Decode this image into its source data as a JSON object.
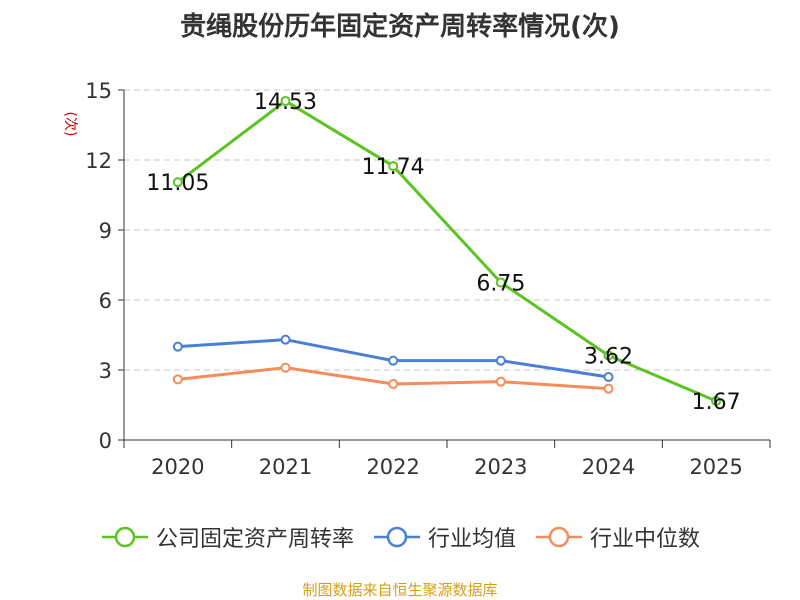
{
  "title": "贵绳股份历年固定资产周转率情况(次)",
  "source": "制图数据来自恒生聚源数据库",
  "chart_data": {
    "type": "line",
    "title": "贵绳股份历年固定资产周转率情况(次)",
    "ylabel": "(次)",
    "xlabel": "",
    "categories": [
      "2020",
      "2021",
      "2022",
      "2023",
      "2024",
      "2025"
    ],
    "ylim": [
      0,
      15
    ],
    "yticks": [
      "0",
      "3",
      "6",
      "9",
      "12",
      "15"
    ],
    "grid": true,
    "legend_position": "bottom",
    "series": [
      {
        "name": "公司固定资产周转率",
        "color": "#5cc323",
        "values": [
          11.05,
          14.53,
          11.74,
          6.75,
          3.62,
          1.67
        ],
        "labels": [
          "11.05",
          "14.53",
          "11.74",
          "6.75",
          "3.62",
          "1.67"
        ]
      },
      {
        "name": "行业均值",
        "color": "#4a7fd8",
        "values": [
          4.0,
          4.3,
          3.4,
          3.4,
          2.7,
          null
        ]
      },
      {
        "name": "行业中位数",
        "color": "#f48d59",
        "values": [
          2.6,
          3.1,
          2.4,
          2.5,
          2.2,
          null
        ]
      }
    ]
  }
}
